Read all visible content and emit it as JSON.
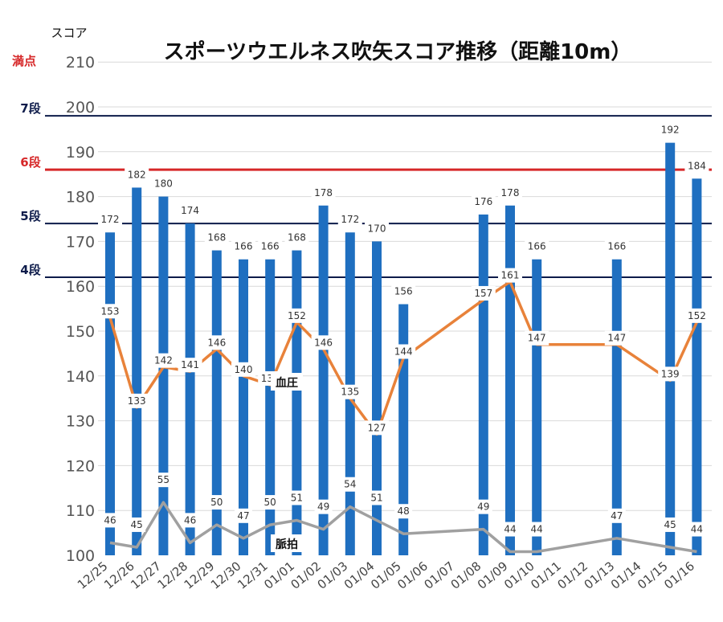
{
  "chart_data": {
    "type": "bar",
    "title": "スポーツウエルネス吹矢スコア推移（距離10m）",
    "ylabel": "スコア",
    "ylim": [
      100,
      210
    ],
    "yticks": [
      100,
      110,
      120,
      130,
      140,
      150,
      160,
      170,
      180,
      190,
      200,
      210
    ],
    "categories": [
      "12/25",
      "12/26",
      "12/27",
      "12/28",
      "12/29",
      "12/30",
      "12/31",
      "01/01",
      "01/02",
      "01/03",
      "01/04",
      "01/05",
      "01/06",
      "01/07",
      "01/08",
      "01/09",
      "01/10",
      "01/11",
      "01/12",
      "01/13",
      "01/14",
      "01/15",
      "01/16"
    ],
    "series": [
      {
        "name": "",
        "type": "bar",
        "color": "#1f6fc0",
        "values": [
          172,
          182,
          180,
          174,
          168,
          166,
          166,
          168,
          178,
          172,
          170,
          156,
          null,
          null,
          176,
          178,
          166,
          null,
          null,
          166,
          null,
          192,
          184
        ]
      },
      {
        "name": "血圧",
        "type": "line",
        "color": "#e8823a",
        "values": [
          153,
          133,
          142,
          141,
          146,
          140,
          138,
          152,
          146,
          135,
          127,
          144,
          null,
          null,
          157,
          161,
          147,
          null,
          null,
          147,
          null,
          139,
          152
        ]
      },
      {
        "name": "脈拍",
        "type": "line",
        "color": "#a0a0a0",
        "values": [
          46,
          45,
          55,
          46,
          50,
          47,
          50,
          51,
          49,
          54,
          51,
          48,
          null,
          null,
          49,
          44,
          44,
          null,
          null,
          47,
          null,
          45,
          44
        ]
      }
    ],
    "reference_lines": [
      {
        "label": "満点",
        "value": 210,
        "color": "#d62728"
      },
      {
        "label": "7段",
        "value": 198,
        "color": "#0d1b4a"
      },
      {
        "label": "6段",
        "value": 186,
        "color": "#d62728"
      },
      {
        "label": "5段",
        "value": 174,
        "color": "#0d1b4a"
      },
      {
        "label": "4段",
        "value": 162,
        "color": "#0d1b4a"
      }
    ],
    "grid": true
  }
}
